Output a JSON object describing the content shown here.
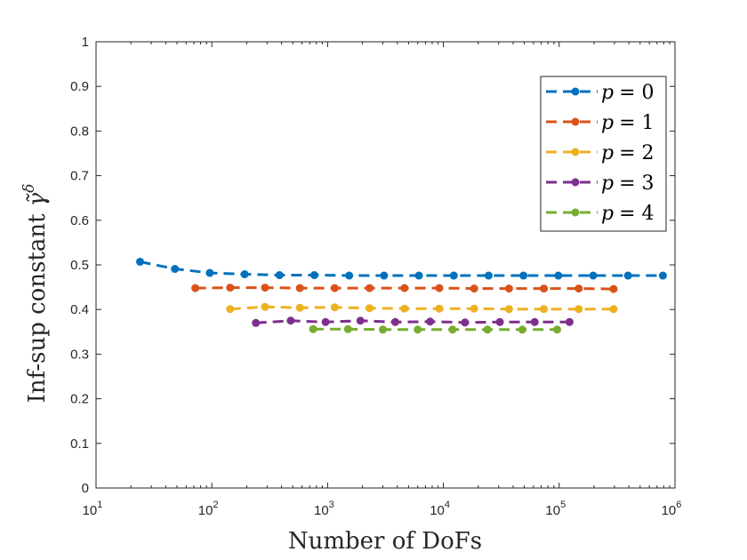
{
  "chart_data": {
    "type": "line",
    "title": "",
    "xlabel": "Number of DoFs",
    "ylabel": "Inf-sup constant",
    "ylabel_symbol": "γ̃",
    "ylabel_superscript": "δ",
    "xscale": "log",
    "xlim": [
      10,
      1000000
    ],
    "ylim": [
      0,
      1
    ],
    "grid": false,
    "legend_position": "top-right",
    "x_ticks": [
      {
        "value": 10,
        "base": "10",
        "exp": "1"
      },
      {
        "value": 100,
        "base": "10",
        "exp": "2"
      },
      {
        "value": 1000,
        "base": "10",
        "exp": "3"
      },
      {
        "value": 10000,
        "base": "10",
        "exp": "4"
      },
      {
        "value": 100000,
        "base": "10",
        "exp": "5"
      },
      {
        "value": 1000000,
        "base": "10",
        "exp": "6"
      }
    ],
    "y_ticks": [
      {
        "value": 0,
        "label": "0"
      },
      {
        "value": 0.1,
        "label": "0.1"
      },
      {
        "value": 0.2,
        "label": "0.2"
      },
      {
        "value": 0.3,
        "label": "0.3"
      },
      {
        "value": 0.4,
        "label": "0.4"
      },
      {
        "value": 0.5,
        "label": "0.5"
      },
      {
        "value": 0.6,
        "label": "0.6"
      },
      {
        "value": 0.7,
        "label": "0.7"
      },
      {
        "value": 0.8,
        "label": "0.8"
      },
      {
        "value": 0.9,
        "label": "0.9"
      },
      {
        "value": 1,
        "label": "1"
      }
    ],
    "series": [
      {
        "name": "p = 0",
        "var": "p",
        "eq": "= 0",
        "color": "#0072BD",
        "x": [
          24,
          48,
          96,
          192,
          384,
          768,
          1536,
          3072,
          6144,
          12288,
          24576,
          49152,
          98304,
          196608,
          393216,
          786432
        ],
        "y": [
          0.507,
          0.491,
          0.482,
          0.479,
          0.477,
          0.477,
          0.476,
          0.476,
          0.476,
          0.476,
          0.476,
          0.476,
          0.476,
          0.476,
          0.476,
          0.476
        ]
      },
      {
        "name": "p = 1",
        "var": "p",
        "eq": "= 1",
        "color": "#D95319",
        "x": [
          72,
          144,
          288,
          576,
          1152,
          2304,
          4608,
          9216,
          18432,
          36864,
          73728,
          147456,
          294912
        ],
        "y": [
          0.448,
          0.449,
          0.449,
          0.448,
          0.448,
          0.448,
          0.448,
          0.448,
          0.447,
          0.447,
          0.447,
          0.447,
          0.446
        ]
      },
      {
        "name": "p = 2",
        "var": "p",
        "eq": "= 2",
        "color": "#EDB120",
        "x": [
          144,
          288,
          576,
          1152,
          2304,
          4608,
          9216,
          18432,
          36864,
          73728,
          147456,
          294912
        ],
        "y": [
          0.401,
          0.406,
          0.404,
          0.405,
          0.403,
          0.402,
          0.402,
          0.402,
          0.401,
          0.401,
          0.401,
          0.401
        ]
      },
      {
        "name": "p = 3",
        "var": "p",
        "eq": "= 3",
        "color": "#7E2F8E",
        "x": [
          240,
          480,
          960,
          1920,
          3840,
          7680,
          15360,
          30720,
          61440,
          122880
        ],
        "y": [
          0.37,
          0.375,
          0.372,
          0.375,
          0.372,
          0.373,
          0.371,
          0.372,
          0.372,
          0.372
        ]
      },
      {
        "name": "p = 4",
        "var": "p",
        "eq": "= 4",
        "color": "#77AC30",
        "x": [
          750,
          1500,
          3000,
          6000,
          12000,
          24000,
          48000,
          96000
        ],
        "y": [
          0.356,
          0.356,
          0.355,
          0.355,
          0.355,
          0.355,
          0.355,
          0.355
        ]
      }
    ]
  }
}
